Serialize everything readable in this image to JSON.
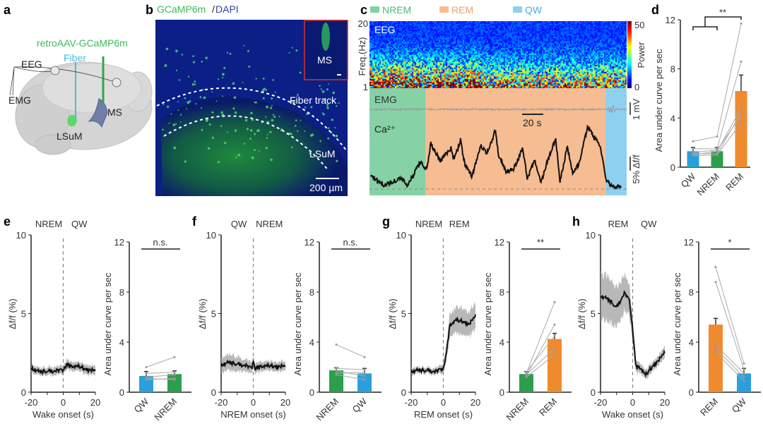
{
  "colors": {
    "QW": "#2b9fdc",
    "NREM": "#2e9e4c",
    "REM": "#f08a2e",
    "legend_NREM": "#86d1a6",
    "legend_REM": "#f6bd92",
    "legend_QW": "#8ed0ef",
    "trace": "#111111",
    "sem": "#9a9a9a"
  },
  "panels": {
    "a": {
      "letter": "a",
      "virus": "retroAAV-GCaMP6m",
      "fiber": "Fiber",
      "eeg": "EEG",
      "emg": "EMG",
      "lsum": "LSuM",
      "ms": "MS"
    },
    "b": {
      "letter": "b",
      "title_green": "GCaMP6m",
      "title_sep": "/",
      "title_blue": "DAPI",
      "inset": "MS",
      "fiber_track": "Fiber track",
      "lsum": "LSuM",
      "scale": "200 µm"
    },
    "c": {
      "letter": "c",
      "legend": [
        "NREM",
        "REM",
        "QW"
      ],
      "eeg": "EEG",
      "freq_label": "Freq.(Hz)",
      "freq_ticks": [
        "20",
        "1"
      ],
      "power_label": "Power",
      "power_ticks": [
        "50",
        "0"
      ],
      "emg": "EMG",
      "ca": "Ca²⁺",
      "time_scale": "20 s",
      "emg_scale": "1 mV",
      "ca_scale": "5% Δf/f"
    },
    "d": {
      "letter": "d",
      "sig": "**"
    },
    "e": {
      "letter": "e"
    },
    "f": {
      "letter": "f"
    },
    "g": {
      "letter": "g"
    },
    "h": {
      "letter": "h"
    }
  },
  "chart_data": [
    {
      "panel": "c",
      "type": "line",
      "xlabel": "",
      "ylabel": "",
      "x_unit": "s",
      "y_unit": "% Δf/f",
      "state_epochs": [
        {
          "state": "NREM",
          "start": 0,
          "end": 53
        },
        {
          "state": "REM",
          "start": 53,
          "end": 223
        },
        {
          "state": "QW",
          "start": 223,
          "end": 243
        }
      ],
      "x": [
        1,
        14,
        30,
        36,
        48,
        54,
        58,
        67,
        77,
        80,
        86,
        90,
        97,
        105,
        111,
        119,
        122,
        129,
        136,
        145,
        149,
        156,
        162,
        169,
        176,
        180,
        187,
        192,
        198,
        206,
        214,
        218,
        224,
        231,
        238
      ],
      "y": [
        4.5,
        1.2,
        4,
        1.2,
        9.5,
        7,
        16,
        10,
        14.5,
        10,
        17.5,
        8.7,
        4.5,
        15.7,
        12.8,
        20.7,
        12,
        6.2,
        7,
        14.5,
        3.7,
        10,
        2,
        11,
        18,
        2.8,
        15,
        5.3,
        9,
        22,
        17.5,
        15,
        2.8,
        0.5,
        1
      ]
    },
    {
      "panel": "d",
      "type": "bar",
      "ylabel": "Area under curve per sec",
      "categories": [
        "QW",
        "NREM",
        "REM"
      ],
      "values": [
        1.3,
        1.3,
        6.2
      ],
      "errors": [
        0.3,
        0.3,
        1.3
      ],
      "ylim": [
        0,
        12
      ],
      "yticks": [
        0,
        4,
        8,
        12
      ],
      "paired": [
        [
          2.1,
          2.5,
          11.7
        ],
        [
          1.5,
          1.5,
          8.6
        ],
        [
          1.0,
          1.3,
          4.8
        ],
        [
          1.1,
          1.1,
          4.4
        ],
        [
          1.2,
          1.4,
          4.2
        ],
        [
          0.95,
          1.0,
          3.6
        ]
      ],
      "significance": "**"
    },
    {
      "panel": "e",
      "type": "line",
      "states": [
        "NREM",
        "QW"
      ],
      "xlabel": "Wake onset (s)",
      "ylabel": "Δf/f (%)",
      "xlim": [
        -20,
        20
      ],
      "ylim": [
        0,
        10
      ],
      "xticks": [
        -20,
        0,
        20
      ],
      "yticks": [
        0,
        5,
        10
      ],
      "x": [
        -20,
        -15,
        -10,
        -5,
        0,
        2,
        5,
        10,
        15,
        20
      ],
      "y": [
        1.5,
        1.3,
        1.35,
        1.35,
        1.4,
        1.75,
        1.6,
        1.65,
        1.4,
        1.4
      ],
      "sem": [
        0.25,
        0.25,
        0.25,
        0.25,
        0.25,
        0.3,
        0.3,
        0.3,
        0.3,
        0.3
      ]
    },
    {
      "panel": "e",
      "type": "bar",
      "ylabel": "Area under curve per sec",
      "categories": [
        "QW",
        "NREM"
      ],
      "values": [
        1.3,
        1.45
      ],
      "errors": [
        0.35,
        0.25
      ],
      "ylim": [
        0,
        12
      ],
      "yticks": [
        0,
        4,
        8,
        12
      ],
      "paired": [
        [
          2.0,
          2.8
        ],
        [
          1.5,
          1.6
        ],
        [
          1.2,
          1.4
        ],
        [
          1.1,
          1.0
        ],
        [
          1.0,
          1.1
        ]
      ],
      "significance": "n.s."
    },
    {
      "panel": "f",
      "type": "line",
      "states": [
        "QW",
        "NREM"
      ],
      "xlabel": "NREM onset (s)",
      "ylabel": "Δf/f (%)",
      "xlim": [
        -20,
        20
      ],
      "ylim": [
        0,
        10
      ],
      "xticks": [
        -20,
        0,
        20
      ],
      "yticks": [
        0,
        5,
        10
      ],
      "x": [
        -20,
        -15,
        -10,
        -5,
        -1,
        0,
        1,
        5,
        10,
        15,
        20
      ],
      "y": [
        1.7,
        1.9,
        1.8,
        1.7,
        1.5,
        2.0,
        1.5,
        1.6,
        1.7,
        1.6,
        1.7
      ],
      "sem": [
        0.5,
        0.5,
        0.45,
        0.4,
        0.35,
        0.35,
        0.3,
        0.3,
        0.3,
        0.3,
        0.3
      ]
    },
    {
      "panel": "f",
      "type": "bar",
      "ylabel": "Area under curve per sec",
      "categories": [
        "NREM",
        "QW"
      ],
      "values": [
        1.75,
        1.5
      ],
      "errors": [
        0.2,
        0.4
      ],
      "ylim": [
        0,
        12
      ],
      "yticks": [
        0,
        4,
        8,
        12
      ],
      "paired": [
        [
          3.8,
          2.8
        ],
        [
          1.9,
          1.8
        ],
        [
          1.7,
          1.3
        ],
        [
          1.4,
          1.0
        ],
        [
          1.5,
          1.6
        ]
      ],
      "significance": "n.s."
    },
    {
      "panel": "g",
      "type": "line",
      "states": [
        "NREM",
        "REM"
      ],
      "xlabel": "REM onset (s)",
      "ylabel": "Δf/f (%)",
      "xlim": [
        -20,
        20
      ],
      "ylim": [
        0,
        10
      ],
      "xticks": [
        -20,
        0,
        20
      ],
      "yticks": [
        0,
        5,
        10
      ],
      "x": [
        -20,
        -15,
        -10,
        -5,
        0,
        2,
        4,
        8,
        12,
        16,
        20
      ],
      "y": [
        1.3,
        1.4,
        1.4,
        1.3,
        1.5,
        2.5,
        4.2,
        4.6,
        4.5,
        4.3,
        4.9
      ],
      "sem": [
        0.2,
        0.2,
        0.2,
        0.2,
        0.3,
        0.5,
        0.7,
        0.8,
        0.8,
        0.8,
        0.9
      ]
    },
    {
      "panel": "g",
      "type": "bar",
      "ylabel": "Area under curve per sec",
      "categories": [
        "NREM",
        "REM"
      ],
      "values": [
        1.45,
        4.25
      ],
      "errors": [
        0.2,
        0.45
      ],
      "ylim": [
        0,
        12
      ],
      "yticks": [
        0,
        4,
        8,
        12
      ],
      "paired": [
        [
          1.5,
          7.2
        ],
        [
          1.3,
          5.4
        ],
        [
          1.6,
          4.5
        ],
        [
          1.4,
          3.5
        ],
        [
          1.2,
          3.0
        ]
      ],
      "significance": "**"
    },
    {
      "panel": "h",
      "type": "line",
      "states": [
        "REM",
        "QW"
      ],
      "xlabel": "Wake onset (s)",
      "ylabel": "Δf/f (%)",
      "xlim": [
        -20,
        20
      ],
      "ylim": [
        0,
        10
      ],
      "xticks": [
        -20,
        0,
        20
      ],
      "yticks": [
        0,
        5,
        10
      ],
      "x": [
        -20,
        -15,
        -10,
        -5,
        -2,
        0,
        2,
        5,
        8,
        12,
        16,
        20
      ],
      "y": [
        6.1,
        5.9,
        5.4,
        6.3,
        5.8,
        4.0,
        1.6,
        1.5,
        1.1,
        1.6,
        2.0,
        2.6
      ],
      "sem": [
        1.5,
        1.4,
        1.2,
        1.2,
        1.0,
        0.8,
        0.4,
        0.3,
        0.3,
        0.3,
        0.3,
        0.4
      ]
    },
    {
      "panel": "h",
      "type": "bar",
      "ylabel": "Area under curve per sec",
      "categories": [
        "REM",
        "QW"
      ],
      "values": [
        5.4,
        1.5
      ],
      "errors": [
        0.5,
        0.4
      ],
      "ylim": [
        0,
        12
      ],
      "yticks": [
        0,
        4,
        8,
        12
      ],
      "paired": [
        [
          10.0,
          2.3
        ],
        [
          8.8,
          1.8
        ],
        [
          3.8,
          1.5
        ],
        [
          3.5,
          1.2
        ],
        [
          3.2,
          0.9
        ]
      ],
      "significance": "*"
    }
  ]
}
